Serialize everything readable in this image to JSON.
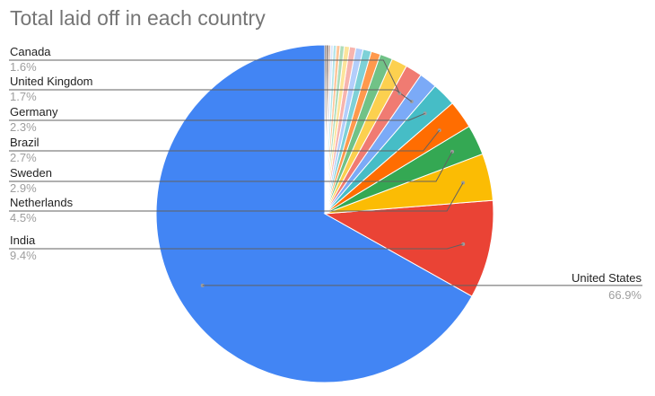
{
  "chart_data": {
    "type": "pie",
    "title": "Total laid off in each country",
    "slices": [
      {
        "label": "United States",
        "value": 66.9,
        "pct_text": "66.9%",
        "color": "#4285f4",
        "labeled": true
      },
      {
        "label": "India",
        "value": 9.4,
        "pct_text": "9.4%",
        "color": "#ea4335",
        "labeled": true
      },
      {
        "label": "Netherlands",
        "value": 4.5,
        "pct_text": "4.5%",
        "color": "#fbbc04",
        "labeled": true
      },
      {
        "label": "Sweden",
        "value": 2.9,
        "pct_text": "2.9%",
        "color": "#34a853",
        "labeled": true
      },
      {
        "label": "Brazil",
        "value": 2.7,
        "pct_text": "2.7%",
        "color": "#ff6d01",
        "labeled": true
      },
      {
        "label": "Germany",
        "value": 2.3,
        "pct_text": "2.3%",
        "color": "#46bdc6",
        "labeled": true
      },
      {
        "label": "United Kingdom",
        "value": 1.7,
        "pct_text": "1.7%",
        "color": "#7baaf7",
        "labeled": true
      },
      {
        "label": "Canada",
        "value": 1.6,
        "pct_text": "1.6%",
        "color": "#f07b72",
        "labeled": true
      },
      {
        "value": 1.5,
        "color": "#fcd04f",
        "labeled": false
      },
      {
        "value": 1.2,
        "color": "#71c287",
        "labeled": false
      },
      {
        "value": 0.9,
        "color": "#ff994d",
        "labeled": false
      },
      {
        "value": 0.8,
        "color": "#7ed1d7",
        "labeled": false
      },
      {
        "value": 0.7,
        "color": "#b3cefb",
        "labeled": false
      },
      {
        "value": 0.6,
        "color": "#f7b4ae",
        "labeled": false
      },
      {
        "value": 0.5,
        "color": "#fde49b",
        "labeled": false
      },
      {
        "value": 0.4,
        "color": "#aedcba",
        "labeled": false
      },
      {
        "value": 0.35,
        "color": "#ffc599",
        "labeled": false
      },
      {
        "value": 0.3,
        "color": "#b5e5e8",
        "labeled": false
      },
      {
        "value": 0.25,
        "color": "#d9e6fc",
        "labeled": false
      },
      {
        "value": 0.2,
        "color": "#c6a79a",
        "labeled": false
      },
      {
        "value": 0.2,
        "color": "#5f4a45",
        "labeled": false
      },
      {
        "value": 0.15,
        "color": "#3c2a26",
        "labeled": false
      }
    ]
  }
}
